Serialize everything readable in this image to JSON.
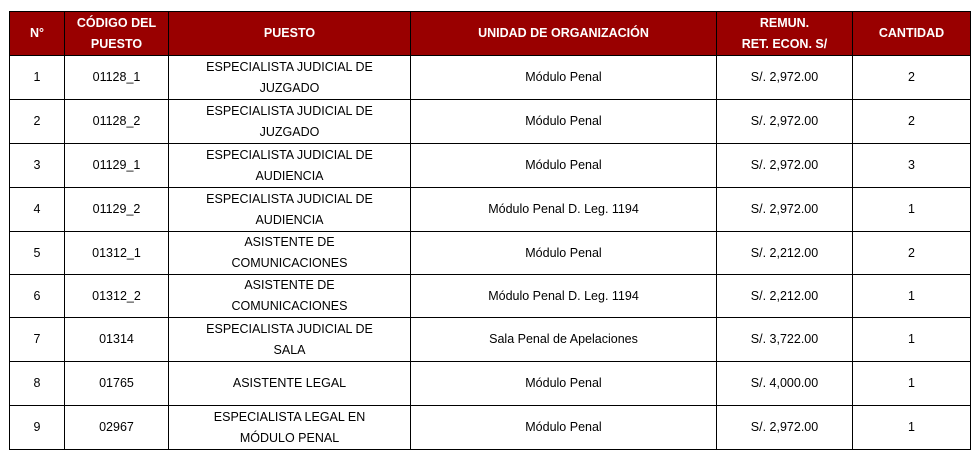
{
  "colors": {
    "header_bg": "#990000",
    "header_text": "#ffffff"
  },
  "headers": {
    "n": "N°",
    "codigo": "CÓDIGO DEL PUESTO",
    "puesto": "PUESTO",
    "unidad": "UNIDAD DE ORGANIZACIÓN",
    "remun_1": "REMUN.",
    "remun_2": "RET. ECON. S/",
    "cantidad": "CANTIDAD"
  },
  "rows": [
    {
      "n": "1",
      "codigo": "01128_1",
      "puesto": "ESPECIALISTA JUDICIAL DE JUZGADO",
      "unidad": "Módulo Penal",
      "remun": "S/. 2,972.00",
      "cantidad": "2"
    },
    {
      "n": "2",
      "codigo": "01128_2",
      "puesto": "ESPECIALISTA JUDICIAL DE JUZGADO",
      "unidad": "Módulo Penal",
      "remun": "S/. 2,972.00",
      "cantidad": "2"
    },
    {
      "n": "3",
      "codigo": "01129_1",
      "puesto": "ESPECIALISTA JUDICIAL DE AUDIENCIA",
      "unidad": "Módulo Penal",
      "remun": "S/. 2,972.00",
      "cantidad": "3"
    },
    {
      "n": "4",
      "codigo": "01129_2",
      "puesto": "ESPECIALISTA JUDICIAL DE AUDIENCIA",
      "unidad": "Módulo Penal D. Leg. 1194",
      "remun": "S/. 2,972.00",
      "cantidad": "1"
    },
    {
      "n": "5",
      "codigo": "01312_1",
      "puesto": "ASISTENTE DE COMUNICACIONES",
      "unidad": "Módulo Penal",
      "remun": "S/. 2,212.00",
      "cantidad": "2"
    },
    {
      "n": "6",
      "codigo": "01312_2",
      "puesto": "ASISTENTE DE COMUNICACIONES",
      "unidad": "Módulo Penal D. Leg. 1194",
      "remun": "S/. 2,212.00",
      "cantidad": "1"
    },
    {
      "n": "7",
      "codigo": "01314",
      "puesto": "ESPECIALISTA JUDICIAL DE SALA",
      "unidad": "Sala Penal de Apelaciones",
      "remun": "S/. 3,722.00",
      "cantidad": "1"
    },
    {
      "n": "8",
      "codigo": "01765",
      "puesto": "ASISTENTE LEGAL",
      "unidad": "Módulo Penal",
      "remun": "S/. 4,000.00",
      "cantidad": "1"
    },
    {
      "n": "9",
      "codigo": "02967",
      "puesto": "ESPECIALISTA LEGAL EN MÓDULO PENAL",
      "unidad": "Módulo Penal",
      "remun": "S/. 2,972.00",
      "cantidad": "1"
    }
  ]
}
